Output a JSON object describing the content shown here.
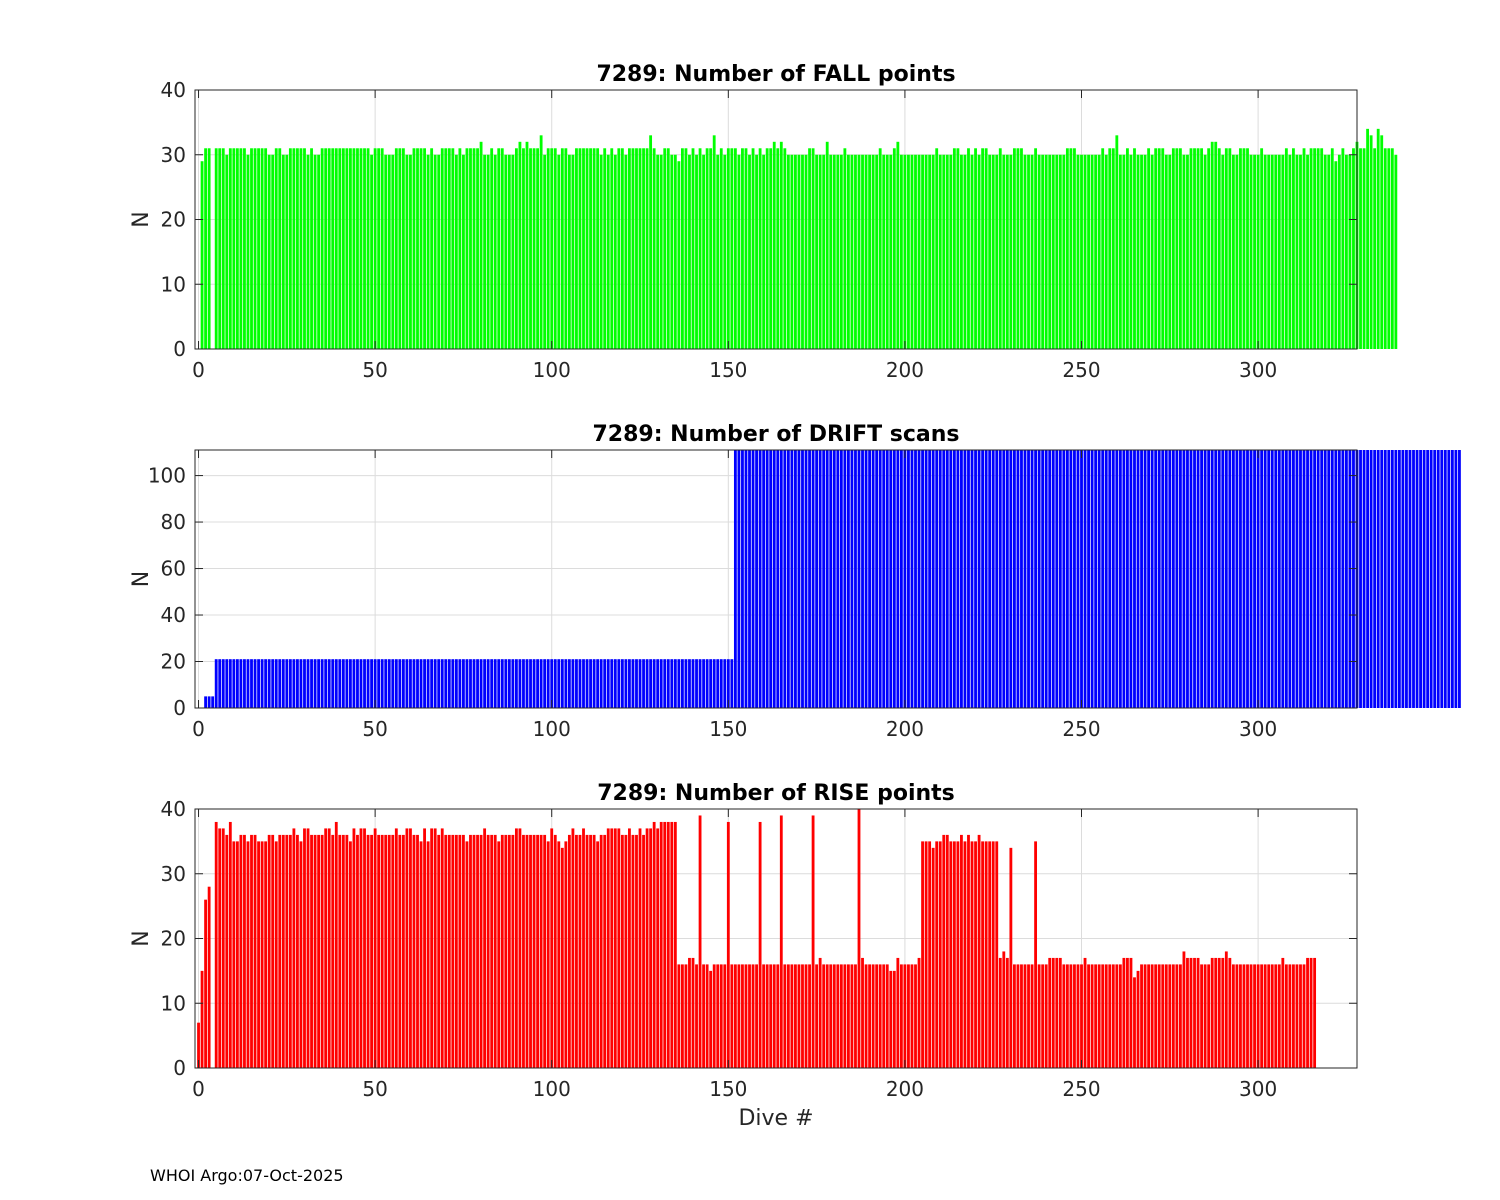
{
  "footer": "WHOI Argo:07-Oct-2025",
  "chart_data": [
    {
      "type": "bar",
      "title": "7289: Number of FALL points",
      "xlabel": "",
      "ylabel": "N",
      "xlim": [
        -1,
        328
      ],
      "ylim": [
        0,
        40
      ],
      "xticks": [
        0,
        50,
        100,
        150,
        200,
        250,
        300
      ],
      "yticks": [
        0,
        10,
        20,
        30,
        40
      ],
      "grid": true,
      "color": "#00ff00",
      "x_start": 1,
      "values": [
        29,
        31,
        31,
        0,
        31,
        31,
        31,
        30,
        31,
        31,
        31,
        31,
        31,
        30,
        31,
        31,
        31,
        31,
        31,
        30,
        30,
        31,
        31,
        30,
        30,
        31,
        31,
        31,
        31,
        31,
        30,
        31,
        30,
        30,
        31,
        31,
        31,
        31,
        31,
        31,
        31,
        31,
        31,
        31,
        31,
        31,
        31,
        31,
        30,
        31,
        31,
        31,
        30,
        30,
        30,
        31,
        31,
        31,
        30,
        30,
        31,
        31,
        31,
        31,
        30,
        31,
        30,
        30,
        31,
        31,
        31,
        31,
        30,
        31,
        30,
        31,
        31,
        31,
        31,
        32,
        30,
        30,
        31,
        30,
        31,
        31,
        30,
        30,
        30,
        31,
        32,
        31,
        32,
        31,
        31,
        31,
        33,
        30,
        31,
        31,
        31,
        30,
        31,
        31,
        30,
        30,
        31,
        31,
        31,
        31,
        31,
        31,
        31,
        30,
        31,
        30,
        31,
        30,
        31,
        31,
        30,
        31,
        31,
        31,
        31,
        31,
        31,
        33,
        31,
        30,
        30,
        31,
        31,
        30,
        30,
        29,
        31,
        31,
        30,
        31,
        30,
        31,
        30,
        31,
        31,
        33,
        30,
        31,
        30,
        31,
        31,
        31,
        30,
        31,
        31,
        30,
        31,
        30,
        31,
        30,
        31,
        31,
        32,
        31,
        32,
        31,
        30,
        30,
        30,
        30,
        30,
        30,
        31,
        31,
        30,
        30,
        30,
        32,
        30,
        30,
        30,
        30,
        31,
        30,
        30,
        30,
        30,
        30,
        30,
        30,
        30,
        30,
        31,
        30,
        30,
        30,
        31,
        32,
        30,
        30,
        30,
        30,
        30,
        30,
        30,
        30,
        30,
        30,
        31,
        30,
        30,
        30,
        30,
        31,
        31,
        30,
        30,
        31,
        30,
        31,
        30,
        31,
        31,
        30,
        30,
        30,
        31,
        30,
        30,
        30,
        31,
        31,
        31,
        30,
        30,
        30,
        31,
        30,
        30,
        30,
        30,
        30,
        30,
        30,
        30,
        31,
        31,
        31,
        30,
        30,
        30,
        30,
        30,
        30,
        30,
        31,
        30,
        31,
        31,
        33,
        30,
        30,
        31,
        30,
        31,
        30,
        30,
        30,
        31,
        30,
        31,
        31,
        31,
        30,
        30,
        31,
        31,
        31,
        30,
        30,
        31,
        31,
        31,
        31,
        30,
        31,
        32,
        32,
        31,
        30,
        31,
        31,
        30,
        30,
        31,
        31,
        31,
        30,
        30,
        30,
        31,
        30,
        30,
        30,
        30,
        30,
        30,
        31,
        30,
        31,
        30,
        30,
        31,
        30,
        31,
        31,
        31,
        31,
        30,
        30,
        31,
        29,
        30,
        31,
        30,
        30,
        31,
        32,
        31,
        31,
        34,
        33,
        31,
        34,
        33,
        31,
        31,
        31,
        30
      ]
    },
    {
      "type": "bar",
      "title": "7289: Number of DRIFT scans",
      "xlabel": "",
      "ylabel": "N",
      "xlim": [
        -1,
        328
      ],
      "ylim": [
        0,
        111
      ],
      "xticks": [
        0,
        50,
        100,
        150,
        200,
        250,
        300
      ],
      "yticks": [
        0,
        20,
        40,
        60,
        80,
        100
      ],
      "grid": true,
      "color": "#0000ff",
      "x_start": 1,
      "values": [
        0,
        5,
        5,
        5,
        21,
        21,
        21,
        21,
        21,
        21,
        21,
        21,
        21,
        21,
        21,
        21,
        21,
        21,
        21,
        21,
        21,
        21,
        21,
        21,
        21,
        21,
        21,
        21,
        21,
        21,
        21,
        21,
        21,
        21,
        21,
        21,
        21,
        21,
        21,
        21,
        21,
        21,
        21,
        21,
        21,
        21,
        21,
        21,
        21,
        21,
        21,
        21,
        21,
        21,
        21,
        21,
        21,
        21,
        21,
        21,
        21,
        21,
        21,
        21,
        21,
        21,
        21,
        21,
        21,
        21,
        21,
        21,
        21,
        21,
        21,
        21,
        21,
        21,
        21,
        21,
        21,
        21,
        21,
        21,
        21,
        21,
        21,
        21,
        21,
        21,
        21,
        21,
        21,
        21,
        21,
        21,
        21,
        21,
        21,
        21,
        21,
        21,
        21,
        21,
        21,
        21,
        21,
        21,
        21,
        21,
        21,
        21,
        21,
        21,
        21,
        21,
        21,
        21,
        21,
        21,
        21,
        21,
        21,
        21,
        21,
        21,
        21,
        21,
        21,
        21,
        21,
        21,
        21,
        21,
        21,
        21,
        21,
        21,
        21,
        21,
        21,
        21,
        21,
        21,
        21,
        21,
        21,
        21,
        21,
        21,
        21,
        111,
        111,
        111,
        111,
        111,
        111,
        111,
        111,
        111,
        111,
        111,
        111,
        111,
        111,
        111,
        111,
        111,
        111,
        111,
        111,
        111,
        111,
        111,
        111,
        111,
        111,
        111,
        111,
        111,
        111,
        111,
        111,
        111,
        111,
        111,
        111,
        111,
        111,
        111,
        111,
        111,
        111,
        111,
        111,
        111,
        111,
        111,
        111,
        111,
        111,
        111,
        111,
        111,
        111,
        111,
        111,
        111,
        111,
        111,
        111,
        111,
        111,
        111,
        111,
        111,
        111,
        111,
        111,
        111,
        111,
        111,
        111,
        111,
        111,
        111,
        111,
        111,
        111,
        111,
        111,
        111,
        111,
        111,
        111,
        111,
        111,
        111,
        111,
        111,
        111,
        111,
        111,
        111,
        111,
        111,
        111,
        111,
        111,
        111,
        111,
        111,
        111,
        111,
        111,
        111,
        111,
        111,
        111,
        111,
        111,
        111,
        111,
        111,
        111,
        111,
        111,
        111,
        111,
        111,
        111,
        111,
        111,
        111,
        111,
        111,
        111,
        111,
        111,
        111,
        111,
        111,
        111,
        111,
        111,
        111,
        111,
        111,
        111,
        111,
        111,
        111,
        111,
        111,
        111,
        111,
        111,
        111,
        111,
        111,
        111,
        111,
        111,
        111,
        111,
        111,
        111,
        111,
        111,
        111,
        111,
        111,
        111,
        111,
        111,
        111,
        111,
        111,
        111,
        111,
        111,
        111,
        111,
        111,
        111,
        111,
        111,
        111,
        111,
        111,
        111,
        111,
        111,
        111,
        111,
        111,
        111,
        111,
        111,
        111,
        111,
        111,
        111,
        111,
        111,
        111,
        111,
        111,
        111,
        111,
        111,
        111,
        111,
        111,
        111,
        111,
        111
      ]
    },
    {
      "type": "bar",
      "title": "7289: Number of RISE points",
      "xlabel": "Dive #",
      "ylabel": "N",
      "xlim": [
        -1,
        328
      ],
      "ylim": [
        0,
        40
      ],
      "xticks": [
        0,
        50,
        100,
        150,
        200,
        250,
        300
      ],
      "yticks": [
        0,
        10,
        20,
        30,
        40
      ],
      "grid": true,
      "color": "#ff0000",
      "x_start": 0,
      "values": [
        7,
        15,
        26,
        28,
        0,
        38,
        37,
        37,
        36,
        38,
        35,
        35,
        36,
        36,
        35,
        36,
        36,
        35,
        35,
        35,
        36,
        36,
        35,
        36,
        36,
        36,
        36,
        37,
        36,
        35,
        37,
        37,
        36,
        36,
        36,
        36,
        37,
        37,
        36,
        38,
        36,
        36,
        36,
        35,
        37,
        36,
        37,
        37,
        36,
        36,
        37,
        36,
        36,
        36,
        36,
        36,
        37,
        36,
        36,
        37,
        37,
        36,
        36,
        35,
        37,
        35,
        37,
        37,
        36,
        37,
        36,
        36,
        36,
        36,
        36,
        36,
        35,
        36,
        36,
        36,
        36,
        37,
        36,
        36,
        36,
        35,
        36,
        36,
        36,
        36,
        37,
        37,
        36,
        36,
        36,
        36,
        36,
        36,
        36,
        35,
        37,
        36,
        35,
        34,
        35,
        36,
        37,
        36,
        36,
        37,
        36,
        36,
        36,
        35,
        36,
        36,
        37,
        37,
        37,
        37,
        36,
        36,
        37,
        36,
        36,
        37,
        36,
        37,
        37,
        38,
        37,
        38,
        38,
        38,
        38,
        38,
        16,
        16,
        16,
        17,
        17,
        16,
        39,
        16,
        16,
        15,
        16,
        16,
        16,
        16,
        38,
        16,
        16,
        16,
        16,
        16,
        16,
        16,
        16,
        38,
        16,
        16,
        16,
        16,
        16,
        39,
        16,
        16,
        16,
        16,
        16,
        16,
        16,
        16,
        39,
        16,
        17,
        16,
        16,
        16,
        16,
        16,
        16,
        16,
        16,
        16,
        16,
        40,
        17,
        16,
        16,
        16,
        16,
        16,
        16,
        16,
        15,
        15,
        17,
        16,
        16,
        16,
        16,
        16,
        17,
        35,
        35,
        35,
        34,
        35,
        35,
        36,
        36,
        35,
        35,
        35,
        36,
        35,
        36,
        35,
        35,
        36,
        35,
        35,
        35,
        35,
        35,
        17,
        18,
        17,
        34,
        16,
        16,
        16,
        16,
        16,
        16,
        35,
        16,
        16,
        16,
        17,
        17,
        17,
        17,
        16,
        16,
        16,
        16,
        16,
        16,
        17,
        16,
        16,
        16,
        16,
        16,
        16,
        16,
        16,
        16,
        16,
        17,
        17,
        17,
        14,
        15,
        16,
        16,
        16,
        16,
        16,
        16,
        16,
        16,
        16,
        16,
        16,
        16,
        18,
        17,
        17,
        17,
        17,
        16,
        16,
        16,
        17,
        17,
        17,
        17,
        18,
        17,
        16,
        16,
        16,
        16,
        16,
        16,
        16,
        16,
        16,
        16,
        16,
        16,
        16,
        16,
        17,
        16,
        16,
        16,
        16,
        16,
        16,
        17,
        17,
        17
      ]
    }
  ]
}
